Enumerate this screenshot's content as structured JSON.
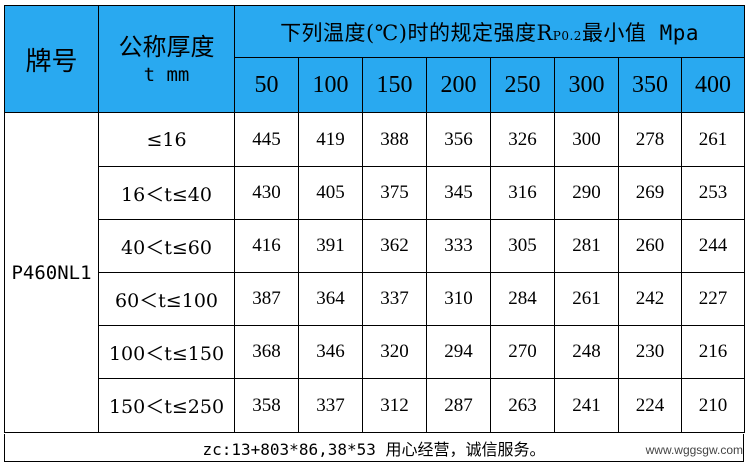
{
  "header": {
    "brand_label": "牌号",
    "thickness_label_line1": "公称厚度",
    "thickness_label_line2": "t mm",
    "temp_label_prefix": "下列温度(℃)时的规定强度R",
    "temp_label_sub": "P0.2",
    "temp_label_suffix": "最小值 Mpa",
    "temperatures": [
      "50",
      "100",
      "150",
      "200",
      "250",
      "300",
      "350",
      "400"
    ]
  },
  "grade": "P460NL1",
  "rows": [
    {
      "range": "≤16",
      "values": [
        "445",
        "419",
        "388",
        "356",
        "326",
        "300",
        "278",
        "261"
      ]
    },
    {
      "range": "16＜t≤40",
      "values": [
        "430",
        "405",
        "375",
        "345",
        "316",
        "290",
        "269",
        "253"
      ]
    },
    {
      "range": "40＜t≤60",
      "values": [
        "416",
        "391",
        "362",
        "333",
        "305",
        "281",
        "260",
        "244"
      ]
    },
    {
      "range": "60＜t≤100",
      "values": [
        "387",
        "364",
        "337",
        "310",
        "284",
        "261",
        "242",
        "227"
      ]
    },
    {
      "range": "100＜t≤150",
      "values": [
        "368",
        "346",
        "320",
        "294",
        "270",
        "248",
        "230",
        "216"
      ]
    },
    {
      "range": "150＜t≤250",
      "values": [
        "358",
        "337",
        "312",
        "287",
        "263",
        "241",
        "224",
        "210"
      ]
    }
  ],
  "footer": {
    "text": "zc:13+803*86,38*53 用心经营，诚信服务。"
  },
  "watermark": "www.wggsgw.com"
}
